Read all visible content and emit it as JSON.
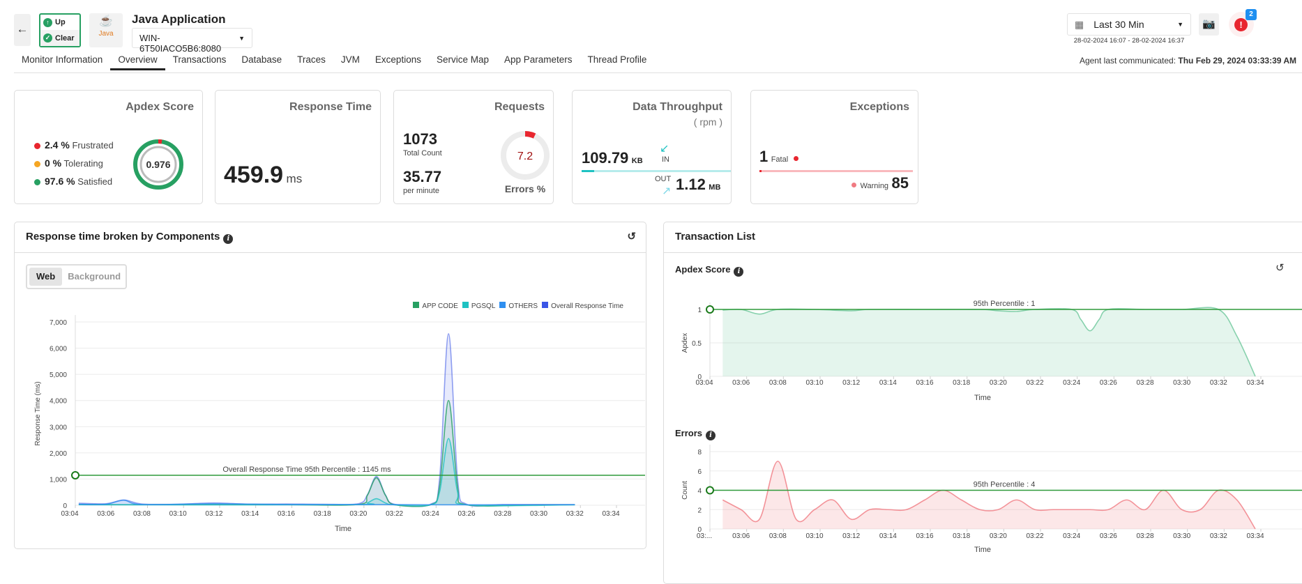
{
  "header": {
    "app_title": "Java Application",
    "status_up": "Up",
    "status_clear": "Clear",
    "logo_text": "Java",
    "instance": "WIN-6T50IACO5B6:8080",
    "time_range": "Last 30 Min",
    "date_range": "28-02-2024 16:07 - 28-02-2024 16:37",
    "alert_count": "2",
    "agent_label": "Agent last communicated:",
    "agent_time": "Thu Feb 29, 2024 03:33:39 AM"
  },
  "tabs": [
    "Monitor Information",
    "Overview",
    "Transactions",
    "Database",
    "Traces",
    "JVM",
    "Exceptions",
    "Service Map",
    "App Parameters",
    "Thread Profile"
  ],
  "active_tab": "Overview",
  "cards": {
    "apdex": {
      "title": "Apdex Score",
      "score": "0.976",
      "score_value": 0.976,
      "rows": [
        {
          "value": "2.4 %",
          "label": "Frustrated",
          "color": "#e8262f"
        },
        {
          "value": "0 %",
          "label": "Tolerating",
          "color": "#f5a623"
        },
        {
          "value": "97.6 %",
          "label": "Satisfied",
          "color": "#27a062"
        }
      ]
    },
    "response": {
      "title": "Response Time",
      "value": "459.9",
      "unit": "ms"
    },
    "requests": {
      "title": "Requests",
      "total": "1073",
      "total_label": "Total Count",
      "rate": "35.77",
      "rate_label": "per minute",
      "errors": "7.2",
      "errors_label": "Errors %",
      "errors_pct": 7.2
    },
    "throughput": {
      "title": "Data Throughput",
      "subtitle": "( rpm )",
      "in_value": "109.79",
      "in_unit": "KB",
      "in_label": "IN",
      "out_label": "OUT",
      "out_value": "1.12",
      "out_unit": "MB"
    },
    "exceptions": {
      "title": "Exceptions",
      "fatal_count": "1",
      "fatal_label": "Fatal",
      "warning_label": "Warning",
      "warning_count": "85"
    }
  },
  "left_panel": {
    "title": "Response time broken by Components",
    "toggle": [
      "Web",
      "Background"
    ],
    "active_toggle": "Web"
  },
  "right_panel": {
    "title": "Transaction List"
  },
  "chart_data": [
    {
      "type": "area",
      "title": "",
      "xlabel": "Time",
      "ylabel": "Response Time (ms)",
      "ylim": [
        0,
        7000
      ],
      "yticks": [
        "0",
        "1,000",
        "2,000",
        "3,000",
        "4,000",
        "5,000",
        "6,000",
        "7,000"
      ],
      "xticks": [
        "03:04",
        "03:06",
        "03:08",
        "03:10",
        "03:12",
        "03:14",
        "03:16",
        "03:18",
        "03:20",
        "03:22",
        "03:24",
        "03:26",
        "03:28",
        "03:30",
        "03:32",
        "03:34"
      ],
      "legend_position": "top-right",
      "grid": true,
      "reference_line": {
        "label": "Overall Response Time 95th Percentile : 1145 ms",
        "value": 1145
      },
      "series": [
        {
          "name": "Overall Response Time",
          "color": "#3a55e6",
          "points": [
            [
              "03:04:30",
              80
            ],
            [
              "03:06",
              60
            ],
            [
              "03:07",
              200
            ],
            [
              "03:08",
              50
            ],
            [
              "03:10",
              40
            ],
            [
              "03:12",
              90
            ],
            [
              "03:14",
              40
            ],
            [
              "03:16",
              50
            ],
            [
              "03:18",
              40
            ],
            [
              "03:20",
              60
            ],
            [
              "03:20:30",
              400
            ],
            [
              "03:21",
              1100
            ],
            [
              "03:21:30",
              400
            ],
            [
              "03:22",
              40
            ],
            [
              "03:24",
              40
            ],
            [
              "03:24:30",
              1000
            ],
            [
              "03:25",
              6550
            ],
            [
              "03:25:30",
              1000
            ],
            [
              "03:26",
              40
            ],
            [
              "03:28",
              30
            ],
            [
              "03:30",
              30
            ],
            [
              "03:32",
              30
            ]
          ]
        },
        {
          "name": "APP CODE",
          "color": "#27a062",
          "points": [
            [
              "03:04:30",
              30
            ],
            [
              "03:08",
              20
            ],
            [
              "03:12",
              30
            ],
            [
              "03:16",
              20
            ],
            [
              "03:20",
              30
            ],
            [
              "03:20:30",
              380
            ],
            [
              "03:21",
              1050
            ],
            [
              "03:21:30",
              380
            ],
            [
              "03:22",
              20
            ],
            [
              "03:24",
              20
            ],
            [
              "03:24:30",
              700
            ],
            [
              "03:25",
              4000
            ],
            [
              "03:25:30",
              700
            ],
            [
              "03:26",
              20
            ],
            [
              "03:30",
              20
            ],
            [
              "03:32",
              20
            ]
          ]
        },
        {
          "name": "PGSQL",
          "color": "#1ec2c2",
          "points": [
            [
              "03:04:30",
              20
            ],
            [
              "03:10",
              15
            ],
            [
              "03:20",
              20
            ],
            [
              "03:20:30",
              90
            ],
            [
              "03:21",
              250
            ],
            [
              "03:21:30",
              90
            ],
            [
              "03:22",
              15
            ],
            [
              "03:24",
              15
            ],
            [
              "03:24:30",
              500
            ],
            [
              "03:25",
              2550
            ],
            [
              "03:25:30",
              500
            ],
            [
              "03:26",
              15
            ],
            [
              "03:32",
              15
            ]
          ]
        },
        {
          "name": "OTHERS",
          "color": "#2f8ff0",
          "points": [
            [
              "03:04:30",
              40
            ],
            [
              "03:06",
              40
            ],
            [
              "03:07",
              190
            ],
            [
              "03:08",
              30
            ],
            [
              "03:12",
              60
            ],
            [
              "03:16",
              30
            ],
            [
              "03:20",
              30
            ],
            [
              "03:24",
              20
            ],
            [
              "03:28",
              20
            ],
            [
              "03:32",
              20
            ]
          ]
        }
      ]
    },
    {
      "type": "area",
      "title": "Apdex Score",
      "xlabel": "Time",
      "ylabel": "Apdex",
      "ylim": [
        0,
        1
      ],
      "yticks": [
        "0",
        "0.5",
        "1"
      ],
      "xticks": [
        "03:04",
        "03:06",
        "03:08",
        "03:10",
        "03:12",
        "03:14",
        "03:16",
        "03:18",
        "03:20",
        "03:22",
        "03:24",
        "03:26",
        "03:28",
        "03:30",
        "03:32",
        "03:34"
      ],
      "grid": true,
      "reference_line": {
        "label": "95th Percentile : 1",
        "value": 1
      },
      "series": [
        {
          "color": "#6cc79a",
          "points": [
            [
              "03:05",
              0.99
            ],
            [
              "03:06",
              1
            ],
            [
              "03:07",
              0.93
            ],
            [
              "03:08",
              1
            ],
            [
              "03:10",
              1
            ],
            [
              "03:12",
              0.98
            ],
            [
              "03:13",
              1
            ],
            [
              "03:16",
              1
            ],
            [
              "03:19",
              1
            ],
            [
              "03:20",
              0.98
            ],
            [
              "03:21",
              0.97
            ],
            [
              "03:22",
              1
            ],
            [
              "03:24",
              1
            ],
            [
              "03:24:30",
              0.85
            ],
            [
              "03:25",
              0.68
            ],
            [
              "03:25:30",
              0.85
            ],
            [
              "03:26",
              1
            ],
            [
              "03:28",
              1
            ],
            [
              "03:30",
              1
            ],
            [
              "03:32",
              1
            ],
            [
              "03:33",
              0.6
            ],
            [
              "03:34",
              0
            ]
          ]
        }
      ]
    },
    {
      "type": "area",
      "title": "Errors",
      "xlabel": "Time",
      "ylabel": "Count",
      "ylim": [
        0,
        8
      ],
      "yticks": [
        "0",
        "2",
        "4",
        "6",
        "8"
      ],
      "xticks": [
        "03:...",
        "03:06",
        "03:08",
        "03:10",
        "03:12",
        "03:14",
        "03:16",
        "03:18",
        "03:20",
        "03:22",
        "03:24",
        "03:26",
        "03:28",
        "03:30",
        "03:32",
        "03:34"
      ],
      "grid": true,
      "reference_line": {
        "label": "95th Percentile : 4",
        "value": 4
      },
      "series": [
        {
          "color": "#f07a82",
          "points": [
            [
              "03:05",
              3
            ],
            [
              "03:06",
              2
            ],
            [
              "03:07",
              1
            ],
            [
              "03:08",
              7
            ],
            [
              "03:09",
              1
            ],
            [
              "03:10",
              2
            ],
            [
              "03:11",
              3
            ],
            [
              "03:12",
              1
            ],
            [
              "03:13",
              2
            ],
            [
              "03:14",
              2
            ],
            [
              "03:15",
              2
            ],
            [
              "03:16",
              3
            ],
            [
              "03:17",
              4
            ],
            [
              "03:18",
              3
            ],
            [
              "03:19",
              2
            ],
            [
              "03:20",
              2
            ],
            [
              "03:21",
              3
            ],
            [
              "03:22",
              2
            ],
            [
              "03:23",
              2
            ],
            [
              "03:24",
              2
            ],
            [
              "03:25",
              2
            ],
            [
              "03:26",
              2
            ],
            [
              "03:27",
              3
            ],
            [
              "03:28",
              2
            ],
            [
              "03:29",
              4
            ],
            [
              "03:30",
              2
            ],
            [
              "03:31",
              2
            ],
            [
              "03:32",
              4
            ],
            [
              "03:33",
              3
            ],
            [
              "03:34",
              0
            ]
          ]
        }
      ]
    }
  ]
}
